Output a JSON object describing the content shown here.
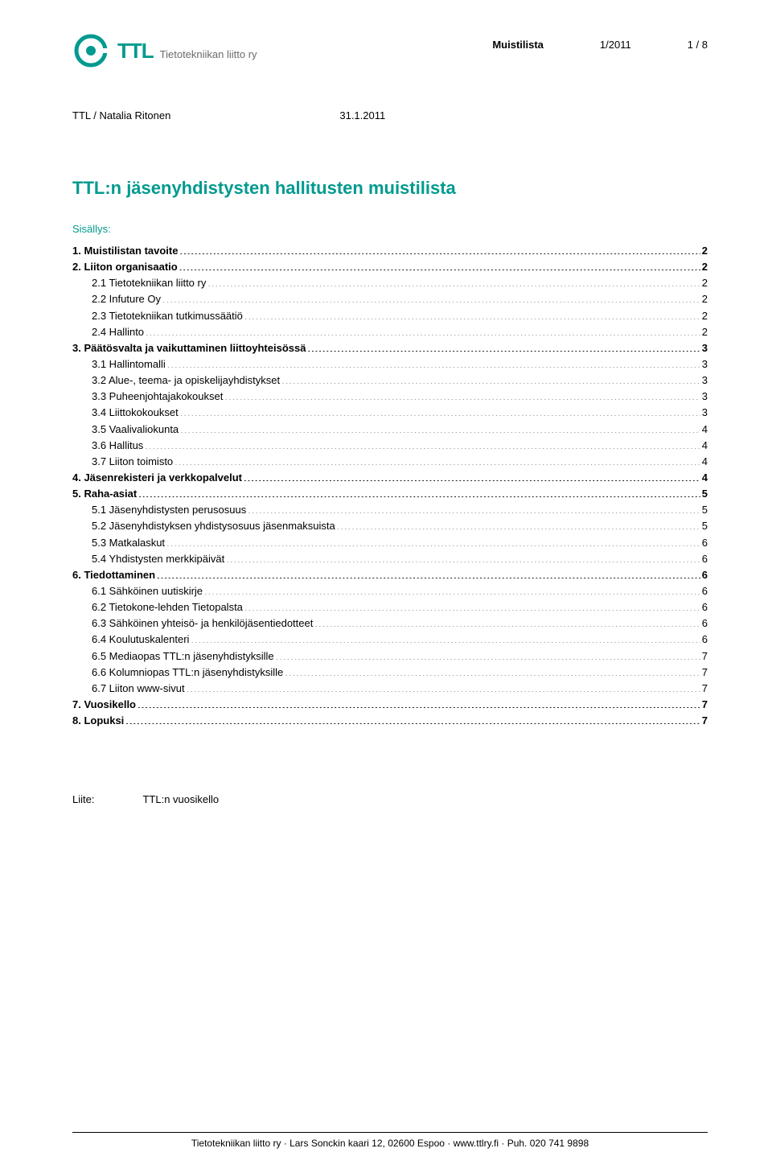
{
  "header": {
    "logo_abbrev": "TTL",
    "logo_full": "Tietotekniikan liitto ry",
    "doc_type": "Muistilista",
    "issue": "1/2011",
    "page": "1 / 8"
  },
  "author_line": {
    "org_author": "TTL / Natalia Ritonen",
    "date": "31.1.2011"
  },
  "main_title": "TTL:n jäsenyhdistysten hallitusten muistilista",
  "toc_label": "Sisällys:",
  "toc": [
    {
      "level": 0,
      "label": "1. Muistilistan tavoite",
      "page": "2"
    },
    {
      "level": 0,
      "label": "2. Liiton organisaatio",
      "page": "2"
    },
    {
      "level": 1,
      "label": "2.1 Tietotekniikan liitto ry",
      "page": "2"
    },
    {
      "level": 1,
      "label": "2.2 Infuture Oy",
      "page": "2"
    },
    {
      "level": 1,
      "label": "2.3 Tietotekniikan tutkimussäätiö",
      "page": "2"
    },
    {
      "level": 1,
      "label": "2.4 Hallinto",
      "page": "2"
    },
    {
      "level": 0,
      "label": "3. Päätösvalta ja vaikuttaminen liittoyhteisössä",
      "page": "3"
    },
    {
      "level": 1,
      "label": "3.1 Hallintomalli",
      "page": "3"
    },
    {
      "level": 1,
      "label": "3.2 Alue-, teema- ja opiskelijayhdistykset",
      "page": "3"
    },
    {
      "level": 1,
      "label": "3.3 Puheenjohtajakokoukset",
      "page": "3"
    },
    {
      "level": 1,
      "label": "3.4 Liittokokoukset",
      "page": "3"
    },
    {
      "level": 1,
      "label": "3.5 Vaalivaliokunta",
      "page": "4"
    },
    {
      "level": 1,
      "label": "3.6 Hallitus",
      "page": "4"
    },
    {
      "level": 1,
      "label": "3.7 Liiton toimisto",
      "page": "4"
    },
    {
      "level": 0,
      "label": "4. Jäsenrekisteri ja verkkopalvelut",
      "page": "4"
    },
    {
      "level": 0,
      "label": "5. Raha-asiat",
      "page": "5"
    },
    {
      "level": 1,
      "label": "5.1 Jäsenyhdistysten perusosuus",
      "page": "5"
    },
    {
      "level": 1,
      "label": "5.2 Jäsenyhdistyksen yhdistysosuus jäsenmaksuista",
      "page": "5"
    },
    {
      "level": 1,
      "label": "5.3 Matkalaskut",
      "page": "6"
    },
    {
      "level": 1,
      "label": "5.4 Yhdistysten merkkipäivät",
      "page": "6"
    },
    {
      "level": 0,
      "label": "6. Tiedottaminen",
      "page": "6"
    },
    {
      "level": 1,
      "label": "6.1 Sähköinen uutiskirje",
      "page": "6"
    },
    {
      "level": 1,
      "label": "6.2 Tietokone-lehden Tietopalsta",
      "page": "6"
    },
    {
      "level": 1,
      "label": "6.3 Sähköinen yhteisö- ja henkilöjäsentiedotteet",
      "page": "6"
    },
    {
      "level": 1,
      "label": "6.4 Koulutuskalenteri",
      "page": "6"
    },
    {
      "level": 1,
      "label": "6.5 Mediaopas TTL:n jäsenyhdistyksille",
      "page": "7"
    },
    {
      "level": 1,
      "label": "6.6 Kolumniopas TTL:n jäsenyhdistyksille",
      "page": "7"
    },
    {
      "level": 1,
      "label": "6.7 Liiton www-sivut",
      "page": "7"
    },
    {
      "level": 0,
      "label": "7. Vuosikello",
      "page": "7"
    },
    {
      "level": 0,
      "label": "8. Lopuksi",
      "page": "7"
    }
  ],
  "attachment": {
    "label": "Liite:",
    "value": "TTL:n vuosikello"
  },
  "footer": "Tietotekniikan liitto ry · Lars Sonckin kaari 12, 02600 Espoo · www.ttlry.fi · Puh. 020 741 9898",
  "colors": {
    "accent": "#009a8e",
    "text": "#000000",
    "muted": "#6b6b6b",
    "background": "#ffffff"
  }
}
